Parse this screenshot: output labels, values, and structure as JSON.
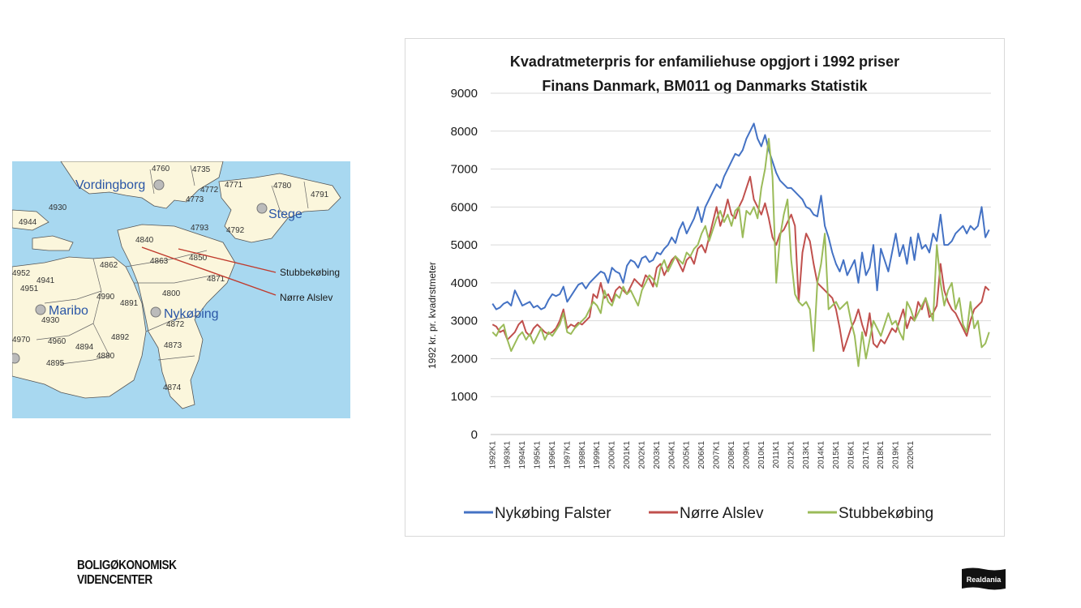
{
  "map": {
    "places": [
      {
        "name": "Vordingborg"
      },
      {
        "name": "Stege"
      },
      {
        "name": "Maribo"
      },
      {
        "name": "Nykøbing"
      }
    ],
    "postcodes": [
      "4760",
      "4735",
      "4771",
      "4772",
      "4773",
      "4780",
      "4791",
      "4793",
      "4792",
      "4930",
      "4944",
      "4840",
      "4862",
      "4863",
      "4850",
      "4871",
      "4952",
      "4951",
      "4941",
      "4990",
      "4800",
      "4891",
      "4930",
      "4872",
      "4892",
      "4970",
      "4960",
      "4894",
      "4880",
      "4873",
      "4895",
      "4874"
    ],
    "annotations": [
      "Stubbekøbing",
      "Nørre Alslev"
    ],
    "colors": {
      "water": "#a8d8f0",
      "land": "#fbf6dc",
      "arrow": "#c0392b",
      "border": "#333333",
      "city": "#bbbbbb"
    }
  },
  "chart_data": {
    "type": "line",
    "title": "Kvadratmeterpris for enfamiliehuse opgjort i 1992 priser",
    "subtitle": "Finans Danmark, BM011 og Danmarks Statistik",
    "xlabel": "",
    "ylabel": "1992 kr. pr. kvadrstmeter",
    "ylim": [
      0,
      9000
    ],
    "yticks": [
      0,
      1000,
      2000,
      3000,
      4000,
      5000,
      6000,
      7000,
      8000,
      9000
    ],
    "x_ticks": [
      "1992K1",
      "1993K1",
      "1994K1",
      "1995K1",
      "1996K1",
      "1997K1",
      "1998K1",
      "1999K1",
      "2000K1",
      "2001K1",
      "2002K1",
      "2003K1",
      "2004K1",
      "2005K1",
      "2006K1",
      "2007K1",
      "2008K1",
      "2009K1",
      "2010K1",
      "2011K1",
      "2012K1",
      "2013K1",
      "2014K1",
      "2015K1",
      "2016K1",
      "2017K1",
      "2018K1",
      "2019K1",
      "2020K1"
    ],
    "x_start": "1992K1",
    "x_end": "2020K3",
    "grid": true,
    "legend_position": "bottom",
    "series": [
      {
        "name": "Nykøbing Falster",
        "color": "#4472c4",
        "values": [
          3450,
          3300,
          3350,
          3450,
          3500,
          3400,
          3800,
          3600,
          3400,
          3450,
          3500,
          3350,
          3400,
          3300,
          3350,
          3550,
          3700,
          3650,
          3700,
          3900,
          3500,
          3650,
          3800,
          3950,
          4000,
          3850,
          4000,
          4100,
          4200,
          4300,
          4250,
          4000,
          4400,
          4300,
          4250,
          4000,
          4450,
          4600,
          4550,
          4400,
          4650,
          4700,
          4550,
          4600,
          4800,
          4750,
          4900,
          5000,
          5200,
          5050,
          5400,
          5600,
          5300,
          5500,
          5700,
          6000,
          5600,
          6000,
          6200,
          6400,
          6600,
          6500,
          6800,
          7000,
          7200,
          7400,
          7350,
          7500,
          7800,
          8000,
          8200,
          7800,
          7600,
          7900,
          7500,
          7200,
          6900,
          6700,
          6600,
          6500,
          6500,
          6400,
          6300,
          6200,
          6000,
          5950,
          5800,
          5750,
          6300,
          5500,
          5200,
          4800,
          4500,
          4300,
          4600,
          4200,
          4400,
          4600,
          4000,
          4800,
          4200,
          4400,
          5000,
          3800,
          4900,
          4600,
          4300,
          4800,
          5300,
          4700,
          5000,
          4500,
          5200,
          4600,
          5300,
          4900,
          5000,
          4800,
          5300,
          5100,
          5800,
          5000,
          5000,
          5100,
          5300,
          5400,
          5500,
          5300,
          5500,
          5400,
          5500,
          6000,
          5200,
          5400
        ]
      },
      {
        "name": "Nørre Alslev",
        "color": "#c0504d",
        "values": [
          2900,
          2850,
          2700,
          2750,
          2500,
          2600,
          2700,
          2900,
          3000,
          2700,
          2600,
          2800,
          2900,
          2800,
          2700,
          2650,
          2700,
          2800,
          3000,
          3300,
          2800,
          2900,
          2850,
          2950,
          2900,
          3000,
          3100,
          3700,
          3600,
          4000,
          3600,
          3700,
          3500,
          3800,
          3900,
          3800,
          3700,
          3900,
          4100,
          4000,
          3900,
          4200,
          4100,
          3900,
          4400,
          4500,
          4200,
          4400,
          4600,
          4700,
          4500,
          4300,
          4600,
          4700,
          4500,
          4900,
          5000,
          4800,
          5200,
          5600,
          6000,
          5500,
          5800,
          6200,
          5800,
          5700,
          6000,
          6200,
          6500,
          6800,
          6200,
          6000,
          5800,
          6100,
          5700,
          5200,
          5000,
          5300,
          5400,
          5600,
          5800,
          5500,
          3500,
          4800,
          5300,
          5100,
          4500,
          4000,
          3900,
          3800,
          3700,
          3600,
          3300,
          2800,
          2200,
          2500,
          2800,
          3000,
          3300,
          2900,
          2600,
          3200,
          2400,
          2300,
          2500,
          2400,
          2600,
          2800,
          2700,
          3000,
          3300,
          2800,
          3100,
          3000,
          3500,
          3300,
          3600,
          3100,
          3200,
          3400,
          4500,
          3800,
          3500,
          3300,
          3200,
          3000,
          2800,
          2600,
          3000,
          3300,
          3400,
          3500,
          3900,
          3800
        ]
      },
      {
        "name": "Stubbekøbing",
        "color": "#9bbb59",
        "values": [
          2700,
          2600,
          2800,
          2900,
          2500,
          2200,
          2400,
          2600,
          2700,
          2500,
          2650,
          2400,
          2600,
          2800,
          2500,
          2700,
          2600,
          2750,
          2900,
          3200,
          2700,
          2650,
          2800,
          2900,
          3000,
          3100,
          3300,
          3500,
          3400,
          3200,
          3800,
          3500,
          3400,
          3700,
          3600,
          3900,
          3700,
          3800,
          3600,
          3400,
          3800,
          4000,
          4200,
          4100,
          3900,
          4400,
          4600,
          4300,
          4500,
          4700,
          4600,
          4500,
          4800,
          4700,
          4900,
          5000,
          5300,
          5500,
          5100,
          5400,
          5700,
          5900,
          5600,
          5800,
          5500,
          5900,
          6000,
          5200,
          5900,
          5800,
          6000,
          5700,
          6500,
          7000,
          7800,
          6800,
          4000,
          5200,
          5800,
          6200,
          4600,
          3700,
          3500,
          3400,
          3500,
          3300,
          2200,
          4000,
          4500,
          5300,
          3300,
          3400,
          3500,
          3300,
          3400,
          3500,
          3000,
          2600,
          1800,
          2700,
          2000,
          2500,
          3000,
          2800,
          2600,
          2900,
          3200,
          2900,
          3000,
          2700,
          2500,
          3500,
          3300,
          3000,
          3200,
          3400,
          3600,
          3300,
          3000,
          5000,
          4000,
          3400,
          3800,
          4000,
          3300,
          3600,
          2900,
          2700,
          3500,
          2800,
          3000,
          2300,
          2400,
          2700
        ]
      }
    ]
  },
  "logos": {
    "left_line1": "BOLIGØKONOMISK",
    "left_line2": "VIDENCENTER",
    "right": "Realdania"
  }
}
